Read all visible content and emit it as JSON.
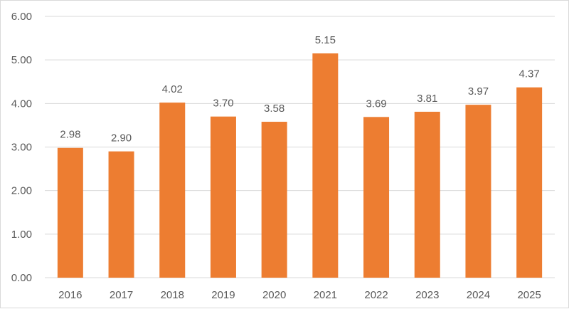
{
  "chart_data": {
    "type": "bar",
    "title": "",
    "xlabel": "",
    "ylabel": "",
    "categories": [
      "2016",
      "2017",
      "2018",
      "2019",
      "2020",
      "2021",
      "2022",
      "2023",
      "2024",
      "2025"
    ],
    "values": [
      2.98,
      2.9,
      4.02,
      3.7,
      3.58,
      5.15,
      3.69,
      3.81,
      3.97,
      4.37
    ],
    "data_labels": [
      "2.98",
      "2.90",
      "4.02",
      "3.70",
      "3.58",
      "5.15",
      "3.69",
      "3.81",
      "3.97",
      "4.37"
    ],
    "ylim": [
      0,
      6
    ],
    "yticks": [
      0,
      1,
      2,
      3,
      4,
      5,
      6
    ],
    "ytick_labels": [
      "0.00",
      "1.00",
      "2.00",
      "3.00",
      "4.00",
      "5.00",
      "6.00"
    ],
    "grid": true,
    "legend": "none",
    "colors": {
      "bar": "#ED7D31",
      "grid": "#D9D9D9",
      "text": "#595959"
    }
  }
}
